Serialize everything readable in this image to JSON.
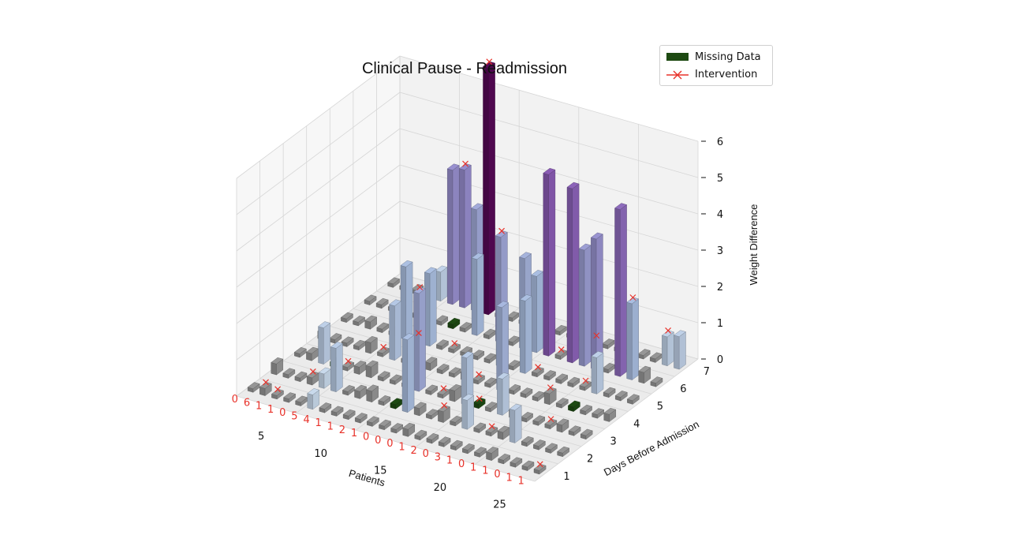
{
  "chart_data": {
    "type": "bar3d",
    "title": "Clinical Pause - Readmission",
    "xlabel": "Patients",
    "ylabel": "Days Before Admission",
    "zlabel": "Weight Difference",
    "x_ticks": [
      "5",
      "10",
      "15",
      "20",
      "25"
    ],
    "y_ticks": [
      "1",
      "2",
      "3",
      "4",
      "5",
      "6",
      "7"
    ],
    "z_ticks": [
      "0",
      "1",
      "2",
      "3",
      "4",
      "5",
      "6"
    ],
    "zlim": [
      0,
      6
    ],
    "patients": 25,
    "days": 7,
    "legend": [
      {
        "label": "Missing Data",
        "color": "#1d4a12",
        "kind": "patch"
      },
      {
        "label": "Intervention",
        "color": "#e8322a",
        "kind": "marker"
      }
    ],
    "row_labels": [
      "0",
      "6",
      "1",
      "1",
      "0",
      "5",
      "4",
      "1",
      "1",
      "2",
      "1",
      "0",
      "0",
      "0",
      "1",
      "2",
      "0",
      "3",
      "1",
      "0",
      "1",
      "1",
      "0",
      "1",
      "1"
    ],
    "values_by_day": [
      [
        0.1,
        0.2,
        0.1,
        0.1,
        0.1,
        0.4,
        0.1,
        0.1,
        0.1,
        0.1,
        0.1,
        0.1,
        0.1,
        0.2,
        0.1,
        0.1,
        0.1,
        0.1,
        0.1,
        0.1,
        0.2,
        0.1,
        0.1,
        0.1,
        0.1
      ],
      [
        0.3,
        0.1,
        0.1,
        0.2,
        0.4,
        1.2,
        0.1,
        0.2,
        0.3,
        0.1,
        0.1,
        2.0,
        0.2,
        0.1,
        0.3,
        0.1,
        0.8,
        0.1,
        0.1,
        0.2,
        0.9,
        0.1,
        0.1,
        0.1,
        0.1
      ],
      [
        0.1,
        0.2,
        1.0,
        0.1,
        0.1,
        0.2,
        0.3,
        0.1,
        0.1,
        0.1,
        2.7,
        0.1,
        0.1,
        0.3,
        1.3,
        0.1,
        0.1,
        1.0,
        0.2,
        0.1,
        0.1,
        0.1,
        0.2,
        0.1,
        0.1
      ],
      [
        0.2,
        0.1,
        0.1,
        0.1,
        0.3,
        0.1,
        1.5,
        0.1,
        0.1,
        0.2,
        0.1,
        0.1,
        0.2,
        0.1,
        0.1,
        2.3,
        0.1,
        0.1,
        0.1,
        0.3,
        0.1,
        0.1,
        0.1,
        0.1,
        0.2
      ],
      [
        0.1,
        0.1,
        0.2,
        0.1,
        0.1,
        2.0,
        0.1,
        2.0,
        0.1,
        0.1,
        0.1,
        0.1,
        0.1,
        1.0,
        0.1,
        2.0,
        0.1,
        0.1,
        0.1,
        0.1,
        0.1,
        1.0,
        0.1,
        0.1,
        0.1
      ],
      [
        0.1,
        0.1,
        0.1,
        0.1,
        0.1,
        0.1,
        0.1,
        0.1,
        0.1,
        2.1,
        0.1,
        2.9,
        0.1,
        2.5,
        2.1,
        5.0,
        0.1,
        4.8,
        3.2,
        3.6,
        0.1,
        4.6,
        2.1,
        0.3,
        0.1
      ],
      [
        0.1,
        0.1,
        0.1,
        0.1,
        0.8,
        3.7,
        3.8,
        2.8,
        6.8,
        0.1,
        0.1,
        0.1,
        0.1,
        0.1,
        0.1,
        0.1,
        0.1,
        0.1,
        0.1,
        0.1,
        0.1,
        0.1,
        0.1,
        0.8,
        0.9
      ]
    ],
    "missing": [
      [
        3,
        2
      ],
      [
        10,
        1
      ],
      [
        15,
        2
      ],
      [
        21,
        3
      ],
      [
        7,
        5
      ]
    ],
    "interventions": [
      [
        1,
        0
      ],
      [
        2,
        0
      ],
      [
        3,
        1
      ],
      [
        4,
        2
      ],
      [
        5,
        3
      ],
      [
        6,
        6
      ],
      [
        6,
        4
      ],
      [
        8,
        6
      ],
      [
        9,
        4
      ],
      [
        10,
        2
      ],
      [
        11,
        5
      ],
      [
        12,
        2
      ],
      [
        13,
        3
      ],
      [
        14,
        1
      ],
      [
        15,
        2
      ],
      [
        16,
        4
      ],
      [
        16,
        5
      ],
      [
        17,
        6
      ],
      [
        18,
        1
      ],
      [
        19,
        3
      ],
      [
        20,
        4
      ],
      [
        21,
        2
      ],
      [
        22,
        5
      ],
      [
        23,
        6
      ],
      [
        24,
        0
      ]
    ]
  }
}
